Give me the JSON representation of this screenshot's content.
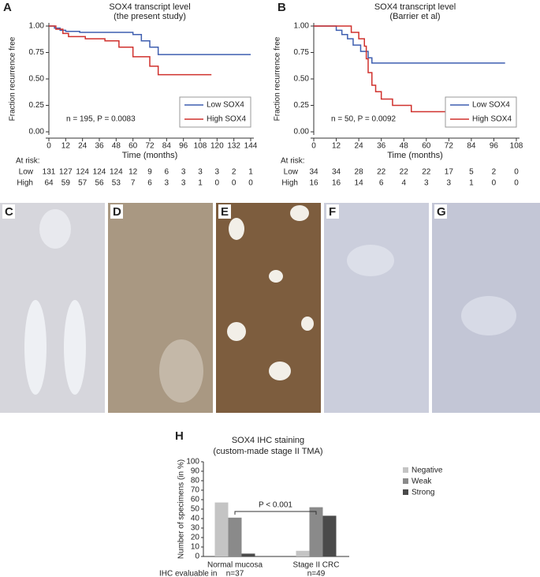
{
  "chart_data": [
    {
      "type": "line",
      "panel_label": "A",
      "title": "SOX4 transcript level",
      "subtitle": "(the present study)",
      "y_label": "Fraction recurrence free",
      "x_label": "Time (months)",
      "xlim": [
        0,
        144
      ],
      "xticks": [
        0,
        12,
        24,
        36,
        48,
        60,
        72,
        84,
        96,
        108,
        120,
        132,
        144
      ],
      "ylim": [
        0,
        1
      ],
      "yticks": [
        {
          "value": 0,
          "label": "0.00"
        },
        {
          "value": 0.25,
          "label": "0.25"
        },
        {
          "value": 0.5,
          "label": "0.50"
        },
        {
          "value": 0.75,
          "label": "0.75"
        },
        {
          "value": 1,
          "label": "1.00"
        }
      ],
      "legend": "lower right",
      "annotation": "n = 195, P = 0.0083",
      "series": [
        {
          "name": "Low SOX4",
          "color": "#3f5fb0",
          "x": [
            0,
            4,
            4,
            8,
            8,
            12,
            12,
            22,
            22,
            60,
            60,
            66,
            66,
            72,
            72,
            78,
            78,
            144
          ],
          "values": [
            1,
            1,
            0.98,
            0.98,
            0.96,
            0.96,
            0.95,
            0.95,
            0.94,
            0.94,
            0.92,
            0.92,
            0.86,
            0.86,
            0.8,
            0.8,
            0.73,
            0.73
          ]
        },
        {
          "name": "High SOX4",
          "color": "#d0312d",
          "x": [
            0,
            5,
            5,
            10,
            10,
            14,
            14,
            26,
            26,
            40,
            40,
            50,
            50,
            60,
            60,
            72,
            72,
            78,
            78,
            116
          ],
          "values": [
            1,
            1,
            0.97,
            0.97,
            0.93,
            0.93,
            0.9,
            0.9,
            0.88,
            0.88,
            0.86,
            0.86,
            0.8,
            0.8,
            0.71,
            0.71,
            0.62,
            0.62,
            0.54,
            0.54
          ]
        }
      ],
      "at_risk": {
        "label": "At risk:",
        "rows": [
          {
            "name": "Low",
            "values": [
              131,
              127,
              124,
              124,
              124,
              12,
              9,
              6,
              3,
              3,
              3,
              2,
              1
            ]
          },
          {
            "name": "High",
            "values": [
              64,
              59,
              57,
              56,
              53,
              7,
              6,
              3,
              3,
              1,
              0,
              0,
              0
            ]
          }
        ]
      }
    },
    {
      "type": "line",
      "panel_label": "B",
      "title": "SOX4 transcript level",
      "subtitle": "(Barrier et al)",
      "y_label": "Fraction recurrence free",
      "x_label": "Time (months)",
      "xlim": [
        0,
        108
      ],
      "xticks": [
        0,
        12,
        24,
        36,
        48,
        60,
        72,
        84,
        96,
        108
      ],
      "ylim": [
        0,
        1
      ],
      "yticks": [
        {
          "value": 0,
          "label": "0.00"
        },
        {
          "value": 0.25,
          "label": "0.25"
        },
        {
          "value": 0.5,
          "label": "0.50"
        },
        {
          "value": 0.75,
          "label": "0.75"
        },
        {
          "value": 1,
          "label": "1.00"
        }
      ],
      "legend": "lower right",
      "annotation": "n = 50, P = 0.0092",
      "series": [
        {
          "name": "Low SOX4",
          "color": "#3f5fb0",
          "x": [
            0,
            12,
            12,
            15,
            15,
            18,
            18,
            21,
            21,
            25,
            25,
            29,
            29,
            31,
            31,
            102
          ],
          "values": [
            1,
            1,
            0.96,
            0.96,
            0.92,
            0.92,
            0.88,
            0.88,
            0.82,
            0.82,
            0.76,
            0.76,
            0.7,
            0.7,
            0.65,
            0.65
          ]
        },
        {
          "name": "High SOX4",
          "color": "#d0312d",
          "x": [
            0,
            20,
            20,
            24,
            24,
            27,
            27,
            28,
            28,
            29,
            29,
            31,
            31,
            33,
            33,
            36,
            36,
            42,
            42,
            52,
            52,
            90
          ],
          "values": [
            1,
            1,
            0.94,
            0.94,
            0.88,
            0.88,
            0.81,
            0.81,
            0.69,
            0.69,
            0.56,
            0.56,
            0.44,
            0.44,
            0.38,
            0.38,
            0.31,
            0.31,
            0.25,
            0.25,
            0.19,
            0.19
          ]
        }
      ],
      "at_risk": {
        "label": "At risk:",
        "rows": [
          {
            "name": "Low",
            "values": [
              34,
              34,
              28,
              22,
              22,
              22,
              17,
              5,
              2,
              0
            ]
          },
          {
            "name": "High",
            "values": [
              16,
              16,
              14,
              6,
              4,
              3,
              3,
              1,
              0,
              0
            ]
          }
        ]
      }
    },
    {
      "type": "bar",
      "panel_label": "H",
      "title": "SOX4 IHC staining",
      "subtitle": "(custom-made stage II TMA)",
      "y_label": "Number of specimens (in %)",
      "ylim": [
        0,
        100
      ],
      "yticks": [
        0,
        10,
        20,
        30,
        40,
        50,
        60,
        70,
        80,
        90,
        100
      ],
      "categories": [
        "Normal mucosa",
        "Stage II CRC"
      ],
      "legend": "upper right",
      "annotation": "P < 0.001",
      "series": [
        {
          "name": "Negative",
          "color": "#c4c4c4",
          "values": [
            57,
            6
          ]
        },
        {
          "name": "Weak",
          "color": "#8a8a8a",
          "values": [
            41,
            52
          ]
        },
        {
          "name": "Strong",
          "color": "#4a4a4a",
          "values": [
            3,
            43
          ]
        }
      ],
      "footnote": "IHC evaluable in",
      "sample_sizes": [
        "n=37",
        "n=49"
      ]
    }
  ],
  "images": {
    "labels": [
      "C",
      "D",
      "E",
      "F",
      "G"
    ]
  }
}
